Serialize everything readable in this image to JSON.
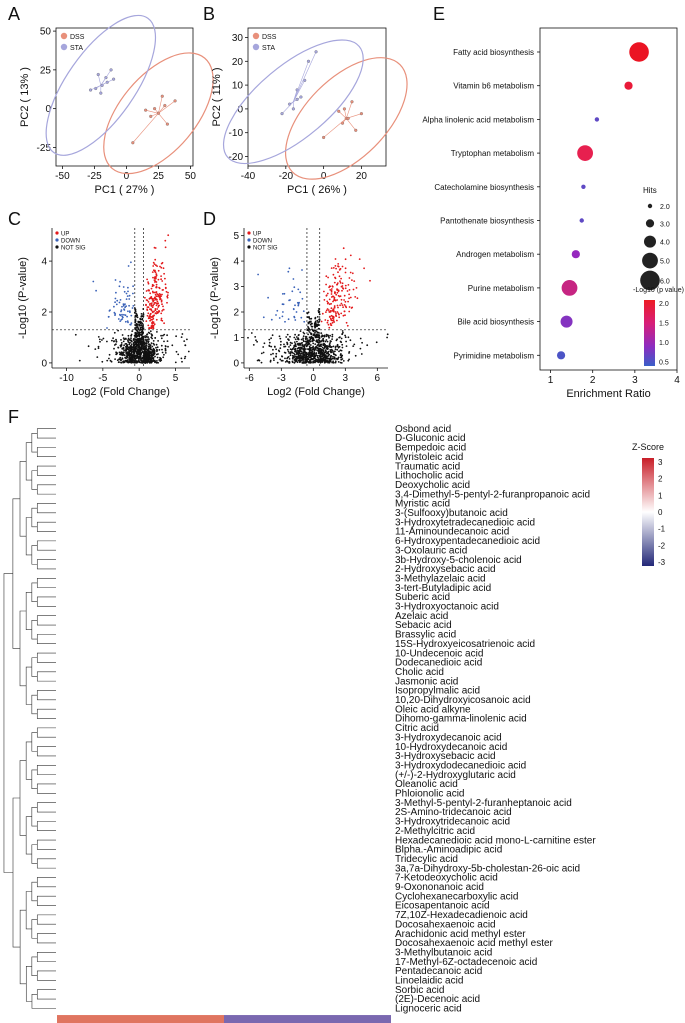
{
  "panel_letters": [
    "A",
    "B",
    "C",
    "D",
    "E",
    "F"
  ],
  "legend_groups": [
    "DSS",
    "STA"
  ],
  "volcano_legend": [
    "UP",
    "DOWN",
    "NOT SIG"
  ],
  "colors": {
    "dss": "#e8907b",
    "sta": "#a6a6dc",
    "up": "#e31a1c",
    "down": "#3a62b8",
    "notsig": "#111111",
    "dss_bar": "#e07560",
    "sta_bar": "#7a68b0"
  },
  "chart_data": [
    {
      "id": "A",
      "type": "scatter",
      "title": "",
      "xlabel": "PC1 ( 27% )",
      "ylabel": "PC2 ( 13% )",
      "xticks": [
        "-50",
        "-25",
        "0",
        "25",
        "50"
      ],
      "yticks": [
        "50",
        "25",
        "0",
        "-25"
      ],
      "xlim": [
        -55,
        52
      ],
      "ylim": [
        -37,
        52
      ],
      "series": [
        {
          "name": "DSS",
          "center": [
            25,
            -3
          ],
          "x": [
            19,
            28,
            38,
            22,
            15,
            32,
            25,
            30,
            5
          ],
          "y": [
            -5,
            8,
            5,
            0,
            -1,
            -10,
            -3,
            2,
            -22
          ]
        },
        {
          "name": "STA",
          "center": [
            -20,
            15
          ],
          "x": [
            -24,
            -16,
            -22,
            -15,
            -12,
            -20,
            -28,
            -19,
            -10
          ],
          "y": [
            13,
            20,
            22,
            17,
            25,
            10,
            12,
            15,
            19
          ]
        }
      ]
    },
    {
      "id": "B",
      "type": "scatter",
      "title": "",
      "xlabel": "PC1 ( 26% )",
      "ylabel": "PC2 ( 11% )",
      "xticks": [
        "-40",
        "-20",
        "0",
        "20"
      ],
      "yticks": [
        "30",
        "20",
        "10",
        "0",
        "-10",
        "-20"
      ],
      "xlim": [
        -40,
        33
      ],
      "ylim": [
        -24,
        34
      ],
      "series": [
        {
          "name": "DSS",
          "center": [
            12,
            -4
          ],
          "x": [
            10,
            15,
            20,
            12,
            8,
            17,
            13,
            11,
            0
          ],
          "y": [
            -6,
            3,
            -2,
            -4,
            -1,
            -9,
            -4,
            0,
            -12
          ]
        },
        {
          "name": "STA",
          "center": [
            -16,
            3
          ],
          "x": [
            -18,
            -12,
            -14,
            -10,
            -16,
            -22,
            -8,
            -4,
            -14
          ],
          "y": [
            2,
            5,
            8,
            12,
            0,
            -2,
            20,
            24,
            4
          ]
        }
      ]
    },
    {
      "id": "C",
      "type": "scatter",
      "title": "",
      "xlabel": "Log2 (Fold Change)",
      "ylabel": "-Log10 (P-value)",
      "xticks": [
        "-10",
        "-5",
        "0",
        "5"
      ],
      "yticks": [
        "0",
        "2",
        "4"
      ],
      "xlim": [
        -12,
        7
      ],
      "ylim": [
        -0.2,
        5.3
      ],
      "thresholds": {
        "x": [
          -0.6,
          0.6
        ],
        "y": 1.3
      },
      "counts": {
        "up": 220,
        "down": 70,
        "notsig": 1000
      },
      "seed": 7
    },
    {
      "id": "D",
      "type": "scatter",
      "title": "",
      "xlabel": "Log2 (Fold Change)",
      "ylabel": "-Log10 (P-value)",
      "xticks": [
        "-6",
        "-3",
        "0",
        "3",
        "6"
      ],
      "yticks": [
        "0",
        "1",
        "2",
        "3",
        "4",
        "5"
      ],
      "xlim": [
        -6.5,
        7
      ],
      "ylim": [
        -0.2,
        5.3
      ],
      "thresholds": {
        "x": [
          -0.6,
          0.6
        ],
        "y": 1.3
      },
      "counts": {
        "up": 180,
        "down": 40,
        "notsig": 900
      },
      "seed": 13
    },
    {
      "id": "E",
      "type": "scatter",
      "title": "",
      "xlabel": "Enrichment Ratio",
      "ylabel": "",
      "xticks": [
        "1",
        "2",
        "3",
        "4"
      ],
      "xlim": [
        0.75,
        4
      ],
      "categories": [
        "Fatty acid biosynthesis",
        "Vitamin b6 metabolism",
        "Alpha linolenic acid metabolism",
        "Tryptophan metabolism",
        "Catecholamine biosynthesis",
        "Pantothenate biosynthesis",
        "Androgen metabolism",
        "Purine metabolism",
        "Bile acid biosynthesis",
        "Pyrimidine metabolism"
      ],
      "x": [
        3.1,
        2.85,
        2.1,
        1.82,
        1.78,
        1.74,
        1.6,
        1.45,
        1.38,
        1.25
      ],
      "hits": [
        6,
        3,
        2,
        5,
        2,
        2,
        3,
        5,
        4,
        3
      ],
      "pvalue": [
        2.0,
        1.8,
        0.7,
        1.6,
        0.7,
        0.7,
        1.0,
        1.3,
        0.9,
        0.6
      ],
      "size_legend_title": "Hits",
      "size_legend": [
        "2.0",
        "3.0",
        "4.0",
        "5.0",
        "6.0"
      ],
      "color_legend_title": "-Log10 (p value)",
      "color_legend": [
        "2.0",
        "1.5",
        "1.0",
        "0.5"
      ]
    },
    {
      "id": "F",
      "type": "heatmap",
      "colorbar_title": "Z-Score",
      "colorbar_ticks": [
        "3",
        "2",
        "1",
        "0",
        "-1",
        "-2",
        "-3"
      ],
      "groups": [
        {
          "name": "DSS",
          "n": 8
        },
        {
          "name": "STA",
          "n": 8
        }
      ],
      "rows": [
        "Osbond acid",
        "D-Gluconic acid",
        "Bempedoic acid",
        "Myristoleic acid",
        "Traumatic acid",
        "Lithocholic acid",
        "Deoxycholic acid",
        "3,4-Dimethyl-5-pentyl-2-furanpropanoic acid",
        "Myristic acid",
        "3-(Sulfooxy)butanoic acid",
        "3-Hydroxytetradecanedioic acid",
        "11-Aminoundecanoic acid",
        "6-Hydroxypentadecanedioic acid",
        "3-Oxolauric acid",
        "3b-Hydroxy-5-cholenoic acid",
        "2-Hydroxysebacic acid",
        "3-Methylazelaic acid",
        "3-tert-Butyladipic acid",
        "Suberic acid",
        "3-Hydroxyoctanoic acid",
        "Azelaic acid",
        "Sebacic acid",
        "Brassylic acid",
        "15S-Hydroxyeicosatrienoic acid",
        "10-Undecenoic acid",
        "Dodecanedioic acid",
        "Cholic acid",
        "Jasmonic acid",
        "Isopropylmalic acid",
        "10,20-Dihydroxyicosanoic acid",
        "Oleic acid alkyne",
        "Dihomo-gamma-linolenic acid",
        "Citric acid",
        "3-Hydroxydecanoic acid",
        "10-Hydroxydecanoic acid",
        "3-Hydroxysebacic acid",
        "3-Hydroxydodecanedioic acid",
        "(+/-)-2-Hydroxyglutaric acid",
        "Oleanolic acid",
        "Phloionolic acid",
        "3-Methyl-5-pentyl-2-furanheptanoic acid",
        "2S-Amino-tridecanoic acid",
        "3-Hydroxytridecanoic acid",
        "2-Methylcitric acid",
        "Hexadecanedioic acid mono-L-carnitine ester",
        "Blpha.-Aminoadipic acid",
        "Tridecylic acid",
        "3a,7a-Dihydroxy-5b-cholestan-26-oic acid",
        "7-Ketodeoxycholic acid",
        "9-Oxononanoic acid",
        "Cyclohexanecarboxylic acid",
        "Eicosapentanoic acid",
        "7Z,10Z-Hexadecadienoic acid",
        "Docosahexaenoic acid",
        "Arachidonic acid methyl ester",
        "Docosahexaenoic acid methyl ester",
        "3-Methylbutanoic acid",
        "17-Methyl-6Z-octadecenoic acid",
        "Pentadecanoic acid",
        "Linoelaidic acid",
        "Sorbic acid",
        "(2E)-Decenoic acid",
        "Lignoceric acid"
      ]
    }
  ]
}
